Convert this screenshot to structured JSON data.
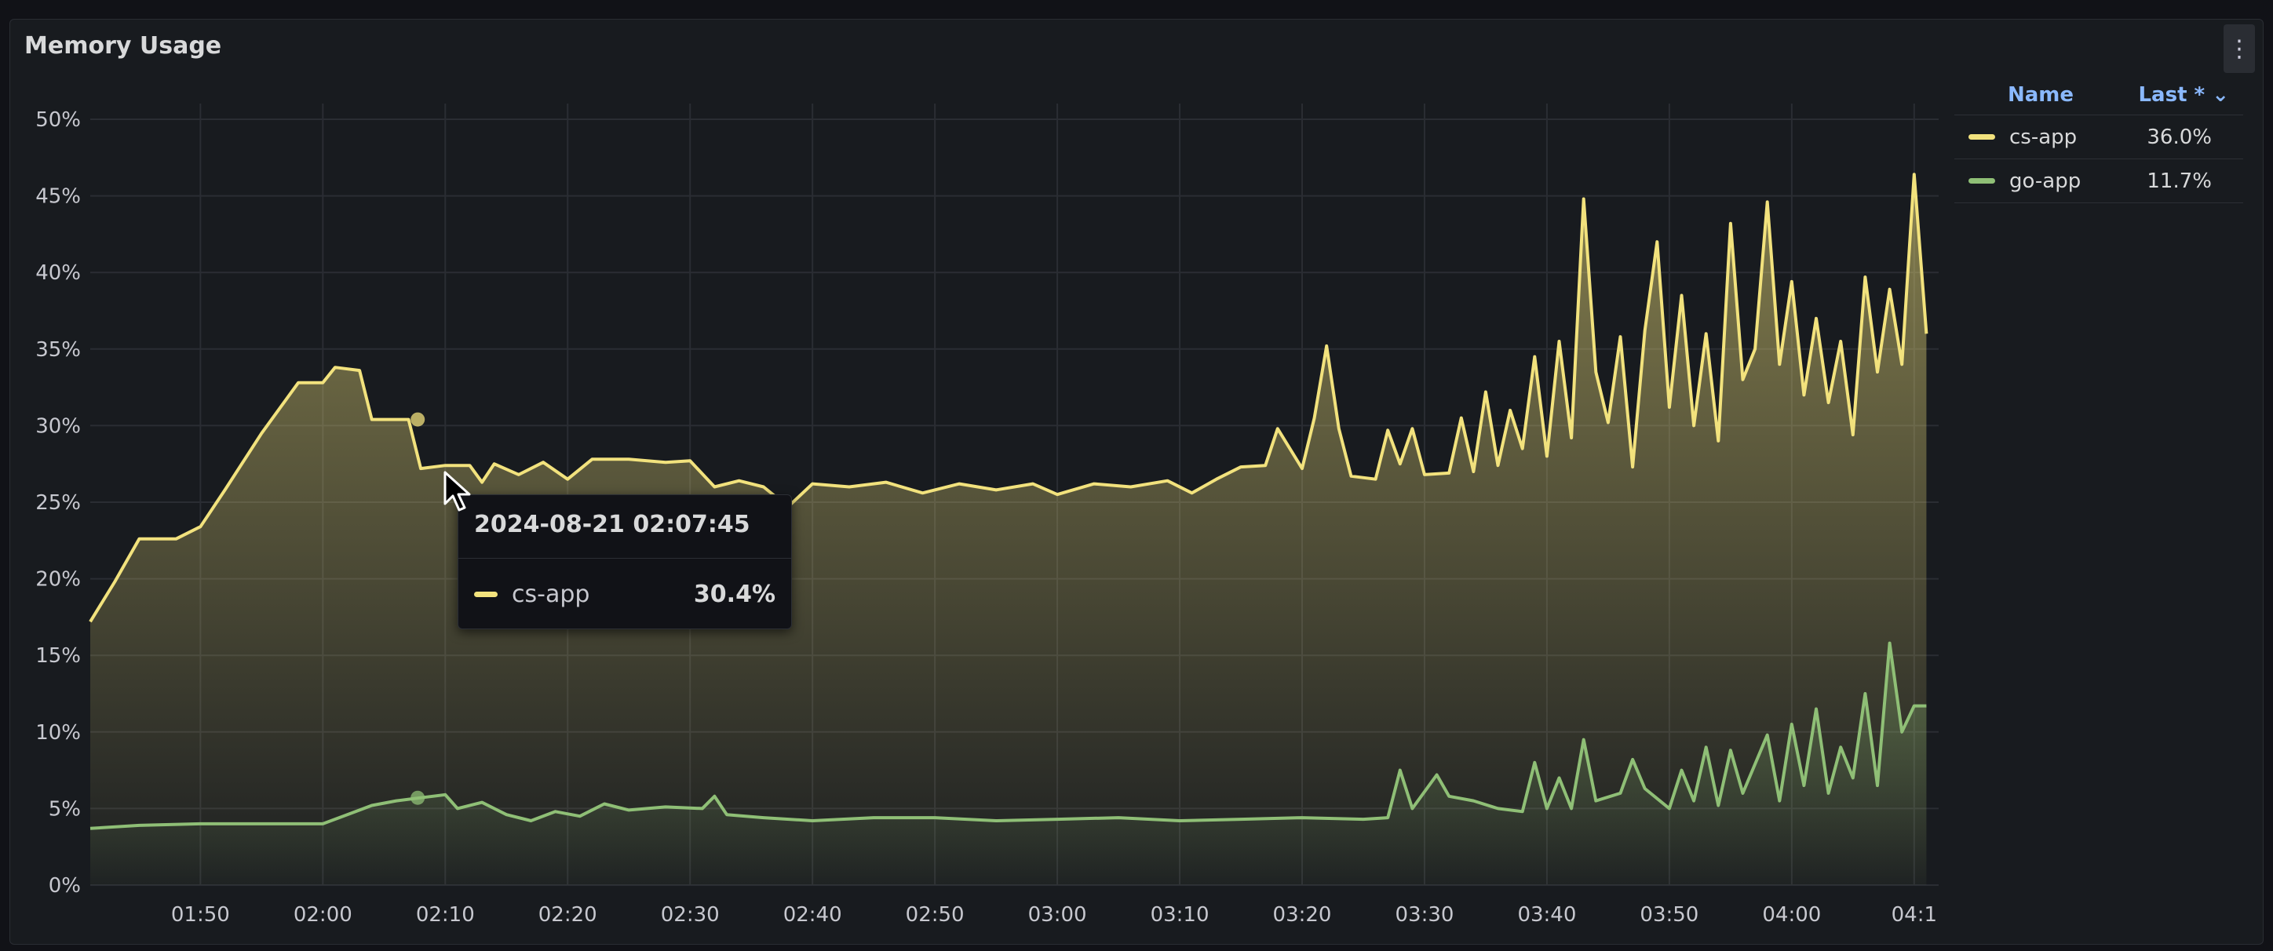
{
  "panel": {
    "title": "Memory Usage",
    "menu_icon": "kebab-vertical-icon"
  },
  "legend": {
    "name_header": "Name",
    "last_header": "Last * ⌄",
    "items": [
      {
        "name": "cs-app",
        "last": "36.0%",
        "color": "#f2e27d"
      },
      {
        "name": "go-app",
        "last": "11.7%",
        "color": "#8fbf76"
      }
    ]
  },
  "tooltip": {
    "time": "2024-08-21 02:07:45",
    "series": "cs-app",
    "value": "30.4%",
    "color": "#f2e27d"
  },
  "chart_data": {
    "type": "line",
    "title": "Memory Usage",
    "ylim": [
      0,
      50
    ],
    "yticks": [
      "0%",
      "5%",
      "10%",
      "15%",
      "20%",
      "25%",
      "30%",
      "35%",
      "40%",
      "45%",
      "50%"
    ],
    "xlim_minutes": [
      101,
      252
    ],
    "xticks": [
      "01:50",
      "02:00",
      "02:10",
      "02:20",
      "02:30",
      "02:40",
      "02:50",
      "03:00",
      "03:10",
      "03:20",
      "03:30",
      "03:40",
      "03:50",
      "04:00",
      "04:1"
    ],
    "grid": true,
    "legend_position": "right",
    "series": [
      {
        "name": "cs-app",
        "color": "#f2e27d",
        "points": [
          [
            "01:41",
            17.2
          ],
          [
            "01:43",
            19.8
          ],
          [
            "01:45",
            22.6
          ],
          [
            "01:48",
            22.6
          ],
          [
            "01:50",
            23.4
          ],
          [
            "01:52",
            25.8
          ],
          [
            "01:55",
            29.5
          ],
          [
            "01:58",
            32.8
          ],
          [
            "02:00",
            32.8
          ],
          [
            "02:01",
            33.8
          ],
          [
            "02:03",
            33.6
          ],
          [
            "02:04",
            30.4
          ],
          [
            "02:07",
            30.4
          ],
          [
            "02:08",
            27.2
          ],
          [
            "02:10",
            27.4
          ],
          [
            "02:12",
            27.4
          ],
          [
            "02:13",
            26.3
          ],
          [
            "02:14",
            27.5
          ],
          [
            "02:16",
            26.8
          ],
          [
            "02:18",
            27.6
          ],
          [
            "02:20",
            26.5
          ],
          [
            "02:22",
            27.8
          ],
          [
            "02:25",
            27.8
          ],
          [
            "02:28",
            27.6
          ],
          [
            "02:30",
            27.7
          ],
          [
            "02:32",
            26.0
          ],
          [
            "02:34",
            26.4
          ],
          [
            "02:36",
            26.0
          ],
          [
            "02:38",
            24.7
          ],
          [
            "02:40",
            26.2
          ],
          [
            "02:43",
            26.0
          ],
          [
            "02:46",
            26.3
          ],
          [
            "02:49",
            25.6
          ],
          [
            "02:52",
            26.2
          ],
          [
            "02:55",
            25.8
          ],
          [
            "02:58",
            26.2
          ],
          [
            "03:00",
            25.5
          ],
          [
            "03:03",
            26.2
          ],
          [
            "03:06",
            26.0
          ],
          [
            "03:09",
            26.4
          ],
          [
            "03:11",
            25.6
          ],
          [
            "03:13",
            26.5
          ],
          [
            "03:15",
            27.3
          ],
          [
            "03:17",
            27.4
          ],
          [
            "03:18",
            29.8
          ],
          [
            "03:20",
            27.2
          ],
          [
            "03:21",
            30.5
          ],
          [
            "03:22",
            35.2
          ],
          [
            "03:23",
            29.8
          ],
          [
            "03:24",
            26.7
          ],
          [
            "03:26",
            26.5
          ],
          [
            "03:27",
            29.7
          ],
          [
            "03:28",
            27.5
          ],
          [
            "03:29",
            29.8
          ],
          [
            "03:30",
            26.8
          ],
          [
            "03:32",
            26.9
          ],
          [
            "03:33",
            30.5
          ],
          [
            "03:34",
            27.0
          ],
          [
            "03:35",
            32.2
          ],
          [
            "03:36",
            27.4
          ],
          [
            "03:37",
            31.0
          ],
          [
            "03:38",
            28.5
          ],
          [
            "03:39",
            34.5
          ],
          [
            "03:40",
            28.0
          ],
          [
            "03:41",
            35.5
          ],
          [
            "03:42",
            29.2
          ],
          [
            "03:43",
            44.8
          ],
          [
            "03:44",
            33.5
          ],
          [
            "03:45",
            30.2
          ],
          [
            "03:46",
            35.8
          ],
          [
            "03:47",
            27.3
          ],
          [
            "03:48",
            36.2
          ],
          [
            "03:49",
            42.0
          ],
          [
            "03:50",
            31.2
          ],
          [
            "03:51",
            38.5
          ],
          [
            "03:52",
            30.0
          ],
          [
            "03:53",
            36.0
          ],
          [
            "03:54",
            29.0
          ],
          [
            "03:55",
            43.2
          ],
          [
            "03:56",
            33.0
          ],
          [
            "03:57",
            35.0
          ],
          [
            "03:58",
            44.6
          ],
          [
            "03:59",
            34.0
          ],
          [
            "04:00",
            39.4
          ],
          [
            "04:01",
            32.0
          ],
          [
            "04:02",
            37.0
          ],
          [
            "04:03",
            31.5
          ],
          [
            "04:04",
            35.5
          ],
          [
            "04:05",
            29.4
          ],
          [
            "04:06",
            39.7
          ],
          [
            "04:07",
            33.5
          ],
          [
            "04:08",
            38.9
          ],
          [
            "04:09",
            34.0
          ],
          [
            "04:10",
            46.4
          ],
          [
            "04:11",
            36.0
          ]
        ]
      },
      {
        "name": "go-app",
        "color": "#8fbf76",
        "points": [
          [
            "01:41",
            3.7
          ],
          [
            "01:45",
            3.9
          ],
          [
            "01:50",
            4.0
          ],
          [
            "01:55",
            4.0
          ],
          [
            "02:00",
            4.0
          ],
          [
            "02:02",
            4.6
          ],
          [
            "02:04",
            5.2
          ],
          [
            "02:06",
            5.5
          ],
          [
            "02:08",
            5.7
          ],
          [
            "02:10",
            5.9
          ],
          [
            "02:11",
            5.0
          ],
          [
            "02:13",
            5.4
          ],
          [
            "02:15",
            4.6
          ],
          [
            "02:17",
            4.2
          ],
          [
            "02:19",
            4.8
          ],
          [
            "02:21",
            4.5
          ],
          [
            "02:23",
            5.3
          ],
          [
            "02:25",
            4.9
          ],
          [
            "02:28",
            5.1
          ],
          [
            "02:31",
            5.0
          ],
          [
            "02:32",
            5.8
          ],
          [
            "02:33",
            4.6
          ],
          [
            "02:36",
            4.4
          ],
          [
            "02:40",
            4.2
          ],
          [
            "02:45",
            4.4
          ],
          [
            "02:50",
            4.4
          ],
          [
            "02:55",
            4.2
          ],
          [
            "03:00",
            4.3
          ],
          [
            "03:05",
            4.4
          ],
          [
            "03:10",
            4.2
          ],
          [
            "03:15",
            4.3
          ],
          [
            "03:20",
            4.4
          ],
          [
            "03:25",
            4.3
          ],
          [
            "03:27",
            4.4
          ],
          [
            "03:28",
            7.5
          ],
          [
            "03:29",
            5.0
          ],
          [
            "03:31",
            7.2
          ],
          [
            "03:32",
            5.8
          ],
          [
            "03:34",
            5.5
          ],
          [
            "03:36",
            5.0
          ],
          [
            "03:38",
            4.8
          ],
          [
            "03:39",
            8.0
          ],
          [
            "03:40",
            5.0
          ],
          [
            "03:41",
            7.0
          ],
          [
            "03:42",
            5.0
          ],
          [
            "03:43",
            9.5
          ],
          [
            "03:44",
            5.5
          ],
          [
            "03:46",
            6.0
          ],
          [
            "03:47",
            8.2
          ],
          [
            "03:48",
            6.3
          ],
          [
            "03:50",
            5.0
          ],
          [
            "03:51",
            7.5
          ],
          [
            "03:52",
            5.5
          ],
          [
            "03:53",
            9.0
          ],
          [
            "03:54",
            5.2
          ],
          [
            "03:55",
            8.8
          ],
          [
            "03:56",
            6.0
          ],
          [
            "03:58",
            9.8
          ],
          [
            "03:59",
            5.5
          ],
          [
            "04:00",
            10.5
          ],
          [
            "04:01",
            6.5
          ],
          [
            "04:02",
            11.5
          ],
          [
            "04:03",
            6.0
          ],
          [
            "04:04",
            9.0
          ],
          [
            "04:05",
            7.0
          ],
          [
            "04:06",
            12.5
          ],
          [
            "04:07",
            6.5
          ],
          [
            "04:08",
            15.8
          ],
          [
            "04:09",
            10.0
          ],
          [
            "04:10",
            11.7
          ],
          [
            "04:11",
            11.7
          ]
        ]
      }
    ],
    "hover": {
      "series": "cs-app",
      "time": "02:07:45",
      "value": 30.4
    }
  }
}
